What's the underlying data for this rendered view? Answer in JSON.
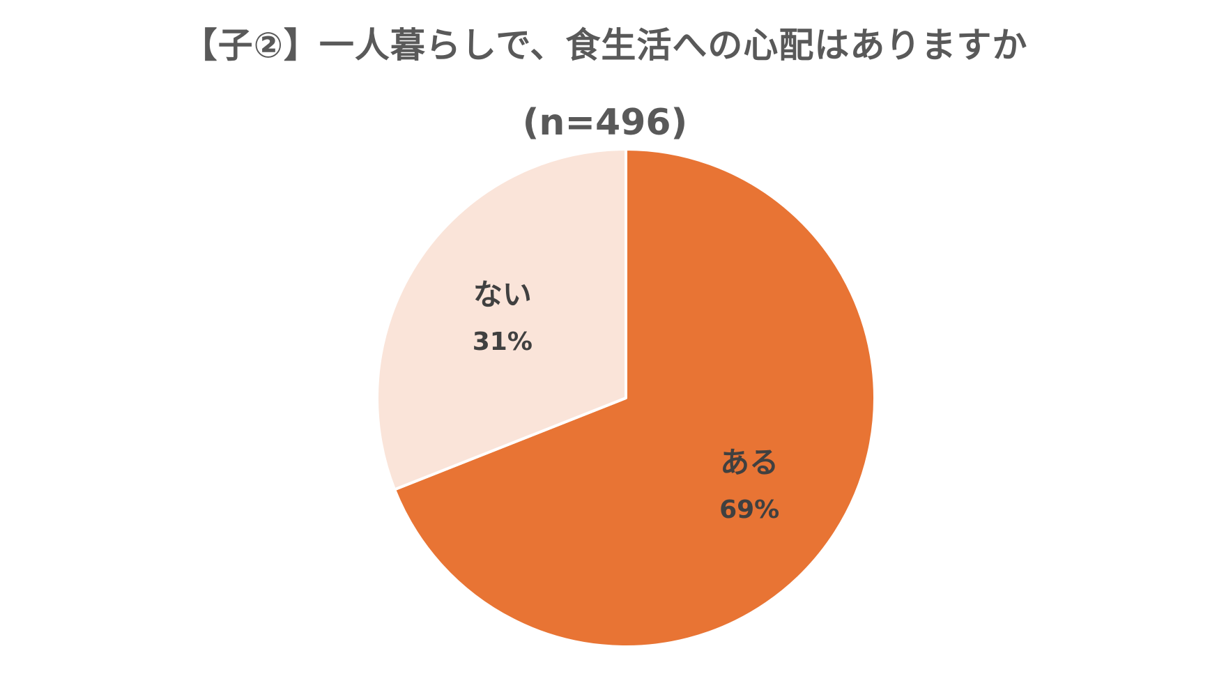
{
  "chart_data": {
    "type": "pie",
    "title": "【子②】一人暮らしで、食生活への心配はありますか",
    "subtitle": "(n=496)",
    "categories": [
      "ある",
      "ない"
    ],
    "values": [
      69,
      31
    ],
    "data_labels": [
      "69%",
      "31%"
    ],
    "colors": [
      "#e87434",
      "#fae4d9"
    ],
    "start_angle": "12 o'clock",
    "direction": "clockwise",
    "legend": "none"
  }
}
